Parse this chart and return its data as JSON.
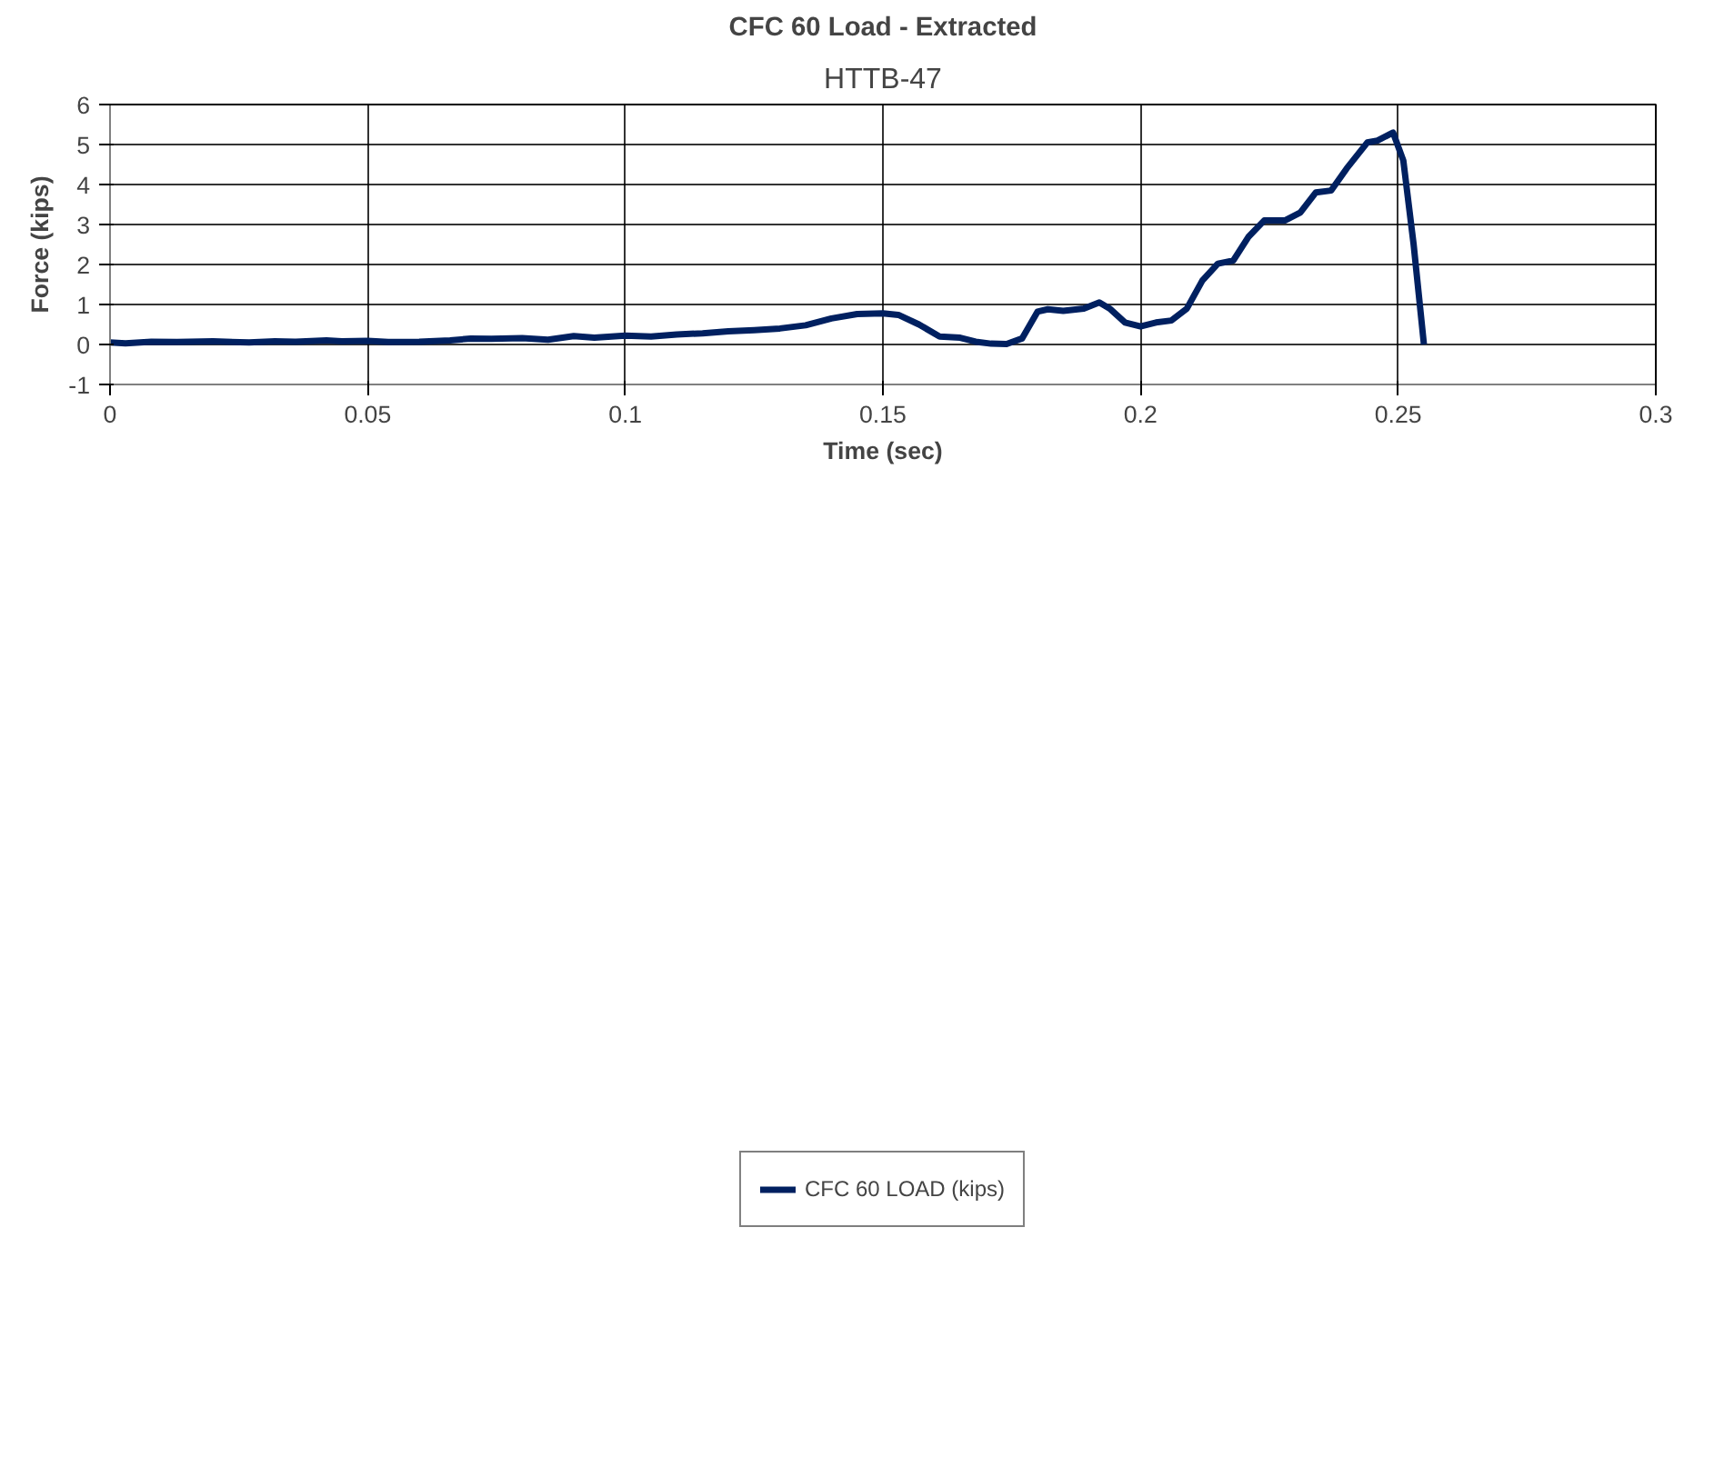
{
  "chart_data": {
    "type": "line",
    "title": "CFC 60 Load - Extracted",
    "subtitle": "HTTB-47",
    "xlabel": "Time (sec)",
    "ylabel": "Force (kips)",
    "xlim": [
      0,
      0.3
    ],
    "xticks": [
      0,
      0.05,
      0.1,
      0.15,
      0.2,
      0.25,
      0.3
    ],
    "ylim": [
      -1,
      6
    ],
    "yticks": [
      -1,
      0,
      1,
      2,
      3,
      4,
      5,
      6
    ],
    "grid": true,
    "legend": "bottom",
    "marker": "none",
    "line_style": "solid",
    "series": [
      {
        "name": "CFC 60 LOAD (kips)",
        "color": "#002060",
        "x": [
          0,
          0.003,
          0.008,
          0.013,
          0.02,
          0.027,
          0.032,
          0.036,
          0.042,
          0.045,
          0.05,
          0.054,
          0.06,
          0.066,
          0.07,
          0.074,
          0.08,
          0.085,
          0.09,
          0.094,
          0.1,
          0.105,
          0.11,
          0.115,
          0.12,
          0.125,
          0.13,
          0.135,
          0.14,
          0.145,
          0.15,
          0.153,
          0.157,
          0.161,
          0.165,
          0.168,
          0.171,
          0.174,
          0.177,
          0.18,
          0.182,
          0.185,
          0.189,
          0.192,
          0.194,
          0.197,
          0.2,
          0.203,
          0.206,
          0.209,
          0.212,
          0.215,
          0.218,
          0.221,
          0.224,
          0.228,
          0.231,
          0.234,
          0.237,
          0.24,
          0.244,
          0.246,
          0.249,
          0.251,
          0.253,
          0.255
        ],
        "values": [
          0.05,
          0.03,
          0.07,
          0.06,
          0.08,
          0.05,
          0.08,
          0.07,
          0.1,
          0.08,
          0.09,
          0.06,
          0.07,
          0.1,
          0.15,
          0.14,
          0.16,
          0.12,
          0.21,
          0.17,
          0.22,
          0.2,
          0.25,
          0.28,
          0.33,
          0.36,
          0.4,
          0.48,
          0.65,
          0.76,
          0.78,
          0.74,
          0.5,
          0.2,
          0.17,
          0.07,
          0.02,
          0.01,
          0.15,
          0.82,
          0.88,
          0.84,
          0.9,
          1.05,
          0.9,
          0.55,
          0.45,
          0.55,
          0.6,
          0.9,
          1.6,
          2.02,
          2.1,
          2.7,
          3.1,
          3.1,
          3.3,
          3.8,
          3.85,
          4.4,
          5.05,
          5.1,
          5.3,
          4.6,
          2.5,
          0
        ]
      }
    ]
  }
}
